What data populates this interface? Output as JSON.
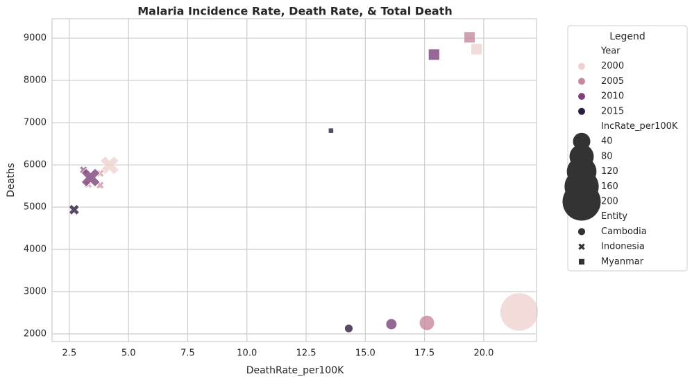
{
  "chart_data": {
    "type": "scatter",
    "title": "Malaria Incidence Rate, Death Rate, & Total Death",
    "x_label": "DeathRate_per100K",
    "y_label": "Deaths",
    "xlim": [
      1.77,
      22.23
    ],
    "ylim": [
      1820,
      9460
    ],
    "xticks": [
      {
        "value": 2.5,
        "label": "2.5"
      },
      {
        "value": 5,
        "label": "5.0"
      },
      {
        "value": 7.5,
        "label": "7.5"
      },
      {
        "value": 10,
        "label": "10.0"
      },
      {
        "value": 12.5,
        "label": "12.5"
      },
      {
        "value": 15,
        "label": "15.0"
      },
      {
        "value": 17.5,
        "label": "17.5"
      },
      {
        "value": 20,
        "label": "20.0"
      }
    ],
    "yticks": [
      2000,
      3000,
      4000,
      5000,
      6000,
      7000,
      8000,
      9000
    ],
    "grid": true,
    "legend": {
      "title": "Legend",
      "position": "outside-right",
      "hue_title": "Year",
      "hue": [
        {
          "value": 2000,
          "color": "#efd2cf"
        },
        {
          "value": 2005,
          "color": "#c58a9f"
        },
        {
          "value": 2010,
          "color": "#7a4379"
        },
        {
          "value": 2015,
          "color": "#2d1e3e"
        }
      ],
      "size_title": "IncRate_per100K",
      "sizes": [
        40,
        80,
        120,
        160,
        200
      ],
      "style_title": "Entity"
    },
    "series": [
      {
        "name": "Cambodia",
        "marker": "circle",
        "x": [
          21.5,
          17.6,
          16.1,
          14.3
        ],
        "values": [
          2520,
          2260,
          2230,
          2130
        ],
        "year": [
          2000,
          2005,
          2010,
          2015
        ],
        "size": [
          200,
          30,
          15,
          8
        ]
      },
      {
        "name": "Indonesia",
        "marker": "x",
        "x": [
          4.2,
          3.8,
          3.1,
          3.8,
          3.3,
          3.4,
          2.7
        ],
        "values": [
          5990,
          5800,
          5880,
          5520,
          5540,
          5700,
          4940
        ],
        "year": [
          2000,
          2003,
          2008,
          2004,
          2003,
          2010,
          2015
        ],
        "size": [
          50,
          8,
          8,
          8,
          8,
          50,
          15
        ]
      },
      {
        "name": "Myanmar",
        "marker": "square",
        "x": [
          19.7,
          19.4,
          17.9,
          13.55
        ],
        "values": [
          8740,
          9020,
          8610,
          6810
        ],
        "year": [
          2000,
          2005,
          2010,
          2015
        ],
        "size": [
          25,
          25,
          25,
          4
        ]
      }
    ]
  }
}
